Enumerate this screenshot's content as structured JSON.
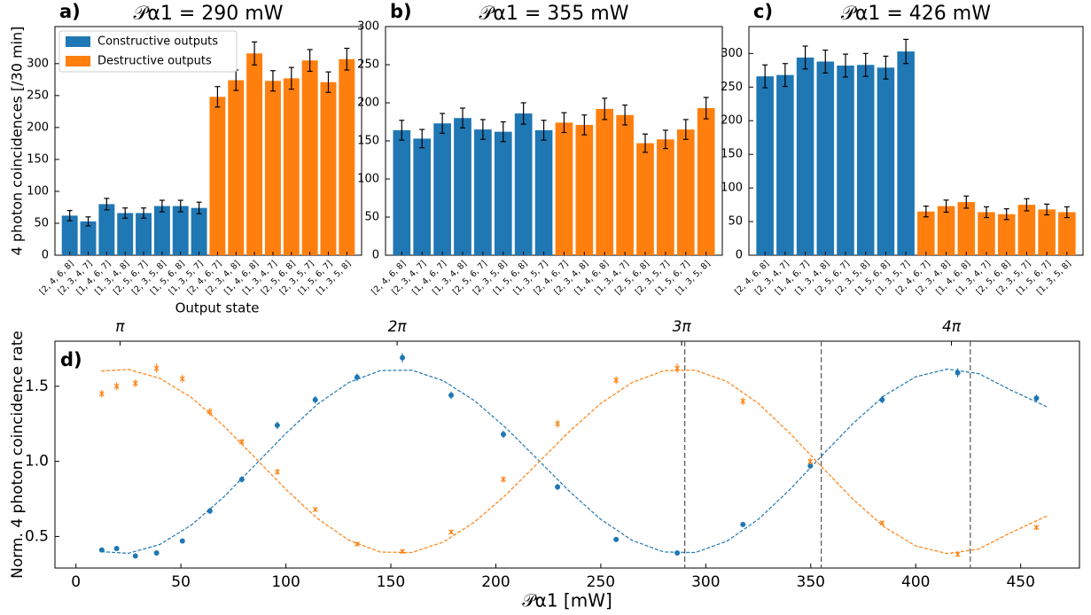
{
  "chart_data": [
    {
      "type": "bar",
      "panel_label": "a)",
      "title": "𝒫α1 = 290 mW",
      "ylabel": "4 photon coincidences [/30 min]",
      "xlabel": "Output state",
      "categories": [
        "[2, 4, 6, 8]",
        "[2, 3, 4, 7]",
        "[1, 4, 6, 7]",
        "[1, 3, 4, 8]",
        "[2, 5, 6, 7]",
        "[2, 3, 5, 8]",
        "[1, 5, 6, 8]",
        "[1, 3, 5, 7]",
        "[2, 4, 6, 7]",
        "[2, 3, 4, 8]",
        "[1, 4, 6, 8]",
        "[1, 3, 4, 7]",
        "[2, 5, 6, 8]",
        "[2, 3, 5, 7]",
        "[1, 5, 6, 7]",
        "[1, 3, 5, 8]"
      ],
      "series": [
        {
          "name": "Constructive outputs",
          "color": "#1f77b4",
          "values": [
            62,
            53,
            80,
            66,
            66,
            77,
            77,
            74,
            null,
            null,
            null,
            null,
            null,
            null,
            null,
            null
          ],
          "errors": [
            8,
            7,
            9,
            8,
            8,
            9,
            9,
            9,
            null,
            null,
            null,
            null,
            null,
            null,
            null,
            null
          ]
        },
        {
          "name": "Destructive outputs",
          "color": "#ff7f0e",
          "values": [
            null,
            null,
            null,
            null,
            null,
            null,
            null,
            null,
            248,
            274,
            316,
            273,
            277,
            305,
            271,
            307
          ],
          "errors": [
            null,
            null,
            null,
            null,
            null,
            null,
            null,
            null,
            16,
            16,
            18,
            16,
            17,
            17,
            16,
            17
          ]
        }
      ],
      "legend": "upper left",
      "ylim": [
        0,
        358
      ],
      "yticks": [
        0,
        50,
        100,
        150,
        200,
        250,
        300
      ]
    },
    {
      "type": "bar",
      "panel_label": "b)",
      "title": "𝒫α1 = 355 mW",
      "categories": [
        "[2, 4, 6, 8]",
        "[2, 3, 4, 7]",
        "[1, 4, 6, 7]",
        "[1, 3, 4, 8]",
        "[2, 5, 6, 7]",
        "[2, 3, 5, 8]",
        "[1, 5, 6, 8]",
        "[1, 3, 5, 7]",
        "[2, 4, 6, 7]",
        "[2, 3, 4, 8]",
        "[1, 4, 6, 8]",
        "[1, 3, 4, 7]",
        "[2, 5, 6, 8]",
        "[2, 3, 5, 7]",
        "[1, 5, 6, 7]",
        "[1, 3, 5, 8]"
      ],
      "series": [
        {
          "color": "#1f77b4",
          "values": [
            164,
            153,
            173,
            180,
            165,
            162,
            186,
            164,
            null,
            null,
            null,
            null,
            null,
            null,
            null,
            null
          ],
          "errors": [
            13,
            12,
            13,
            13,
            13,
            13,
            14,
            13,
            null,
            null,
            null,
            null,
            null,
            null,
            null,
            null
          ]
        },
        {
          "color": "#ff7f0e",
          "values": [
            null,
            null,
            null,
            null,
            null,
            null,
            null,
            null,
            174,
            171,
            192,
            184,
            147,
            152,
            165,
            193
          ],
          "errors": [
            null,
            null,
            null,
            null,
            null,
            null,
            null,
            null,
            13,
            13,
            14,
            13,
            12,
            12,
            13,
            14
          ]
        }
      ],
      "ylim": [
        0,
        300
      ],
      "yticks": [
        0,
        50,
        100,
        150,
        200,
        250,
        300
      ]
    },
    {
      "type": "bar",
      "panel_label": "c)",
      "title": "𝒫α1 = 426 mW",
      "categories": [
        "[2, 4, 6, 8]",
        "[2, 3, 4, 7]",
        "[1, 4, 6, 7]",
        "[1, 3, 4, 8]",
        "[2, 5, 6, 7]",
        "[2, 3, 5, 8]",
        "[1, 5, 6, 8]",
        "[1, 3, 5, 7]",
        "[2, 4, 6, 7]",
        "[2, 3, 4, 8]",
        "[1, 4, 6, 8]",
        "[1, 3, 4, 7]",
        "[2, 5, 6, 8]",
        "[2, 3, 5, 7]",
        "[1, 5, 6, 7]",
        "[1, 3, 5, 8]"
      ],
      "series": [
        {
          "color": "#1f77b4",
          "values": [
            266,
            268,
            294,
            288,
            282,
            283,
            279,
            303,
            null,
            null,
            null,
            null,
            null,
            null,
            null,
            null
          ],
          "errors": [
            17,
            17,
            17,
            17,
            17,
            17,
            17,
            18,
            null,
            null,
            null,
            null,
            null,
            null,
            null,
            null
          ]
        },
        {
          "color": "#ff7f0e",
          "values": [
            null,
            null,
            null,
            null,
            null,
            null,
            null,
            null,
            65,
            73,
            79,
            64,
            61,
            75,
            68,
            64
          ],
          "errors": [
            null,
            null,
            null,
            null,
            null,
            null,
            null,
            null,
            8,
            9,
            9,
            8,
            8,
            9,
            8,
            8
          ]
        }
      ],
      "ylim": [
        0,
        340
      ],
      "yticks": [
        0,
        50,
        100,
        150,
        200,
        250,
        300
      ]
    },
    {
      "type": "scatter",
      "panel_label": "d)",
      "ylabel": "Norm. 4 photon coincidence rate",
      "xlabel": "𝒫α1 [mW]",
      "x": [
        12.3,
        19.4,
        28.3,
        38.4,
        50.7,
        63.8,
        79,
        95.9,
        114,
        133.9,
        155.5,
        178.7,
        203.6,
        229.4,
        257.3,
        286.4,
        317.7,
        349.8,
        384,
        420,
        457.5
      ],
      "series": [
        {
          "color": "#1f77b4",
          "marker": "o",
          "values": [
            0.41,
            0.42,
            0.37,
            0.39,
            0.47,
            0.67,
            0.88,
            1.24,
            1.41,
            1.56,
            1.69,
            1.44,
            1.18,
            0.83,
            0.48,
            0.39,
            0.58,
            0.97,
            1.41,
            1.59,
            1.42
          ],
          "errors": [
            0.015,
            0.015,
            0.015,
            0.015,
            0.015,
            0.02,
            0.02,
            0.025,
            0.025,
            0.025,
            0.03,
            0.025,
            0.025,
            0.02,
            0.015,
            0.015,
            0.015,
            0.02,
            0.025,
            0.03,
            0.025
          ]
        },
        {
          "color": "#ff7f0e",
          "marker": "x",
          "values": [
            1.45,
            1.5,
            1.52,
            1.62,
            1.55,
            1.33,
            1.13,
            0.93,
            0.68,
            0.45,
            0.4,
            0.53,
            0.88,
            1.25,
            1.54,
            1.62,
            1.4,
            1.0,
            0.59,
            0.38,
            0.56
          ],
          "errors": [
            0.025,
            0.025,
            0.025,
            0.03,
            0.025,
            0.025,
            0.02,
            0.02,
            0.015,
            0.015,
            0.015,
            0.015,
            0.02,
            0.025,
            0.025,
            0.03,
            0.025,
            0.02,
            0.015,
            0.015,
            0.015
          ]
        }
      ],
      "fit_x": [
        12,
        25,
        40,
        55,
        70,
        85,
        100,
        115,
        130,
        145,
        160,
        175,
        190,
        205,
        220,
        235,
        250,
        265,
        280,
        295,
        310,
        325,
        340,
        355,
        370,
        385,
        400,
        415,
        430,
        445,
        463
      ],
      "fits": [
        {
          "color": "#1f77b4",
          "values": [
            0.399,
            0.388,
            0.447,
            0.576,
            0.758,
            0.971,
            1.186,
            1.38,
            1.525,
            1.604,
            1.607,
            1.537,
            1.402,
            1.22,
            1.012,
            0.801,
            0.614,
            0.474,
            0.397,
            0.393,
            0.468,
            0.614,
            0.812,
            1.033,
            1.251,
            1.437,
            1.563,
            1.614,
            1.584,
            1.477,
            1.36
          ]
        },
        {
          "color": "#ff7f0e",
          "values": [
            1.601,
            1.612,
            1.553,
            1.424,
            1.242,
            1.029,
            0.814,
            0.62,
            0.475,
            0.396,
            0.393,
            0.463,
            0.598,
            0.78,
            0.988,
            1.199,
            1.386,
            1.526,
            1.603,
            1.607,
            1.532,
            1.386,
            1.188,
            0.967,
            0.749,
            0.563,
            0.437,
            0.386,
            0.416,
            0.523,
            0.64
          ]
        }
      ],
      "vlines": [
        290,
        355,
        426
      ],
      "xlim": [
        -10,
        478
      ],
      "ylim": [
        0.29,
        1.8
      ],
      "xticks": [
        0,
        50,
        100,
        150,
        200,
        250,
        300,
        350,
        400,
        450
      ],
      "yticks": [
        0.5,
        {
          "value": 1,
          "label": "1.0"
        },
        1.5
      ],
      "x2ticks": [
        {
          "value": 21,
          "label": "π"
        },
        {
          "value": 153,
          "label": "2π"
        },
        {
          "value": 288.5,
          "label": "3π"
        },
        {
          "value": 417,
          "label": "4π"
        }
      ]
    }
  ]
}
